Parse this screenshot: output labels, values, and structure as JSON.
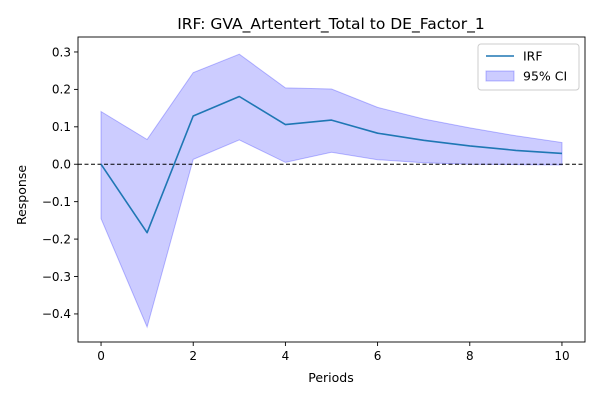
{
  "chart_data": {
    "type": "line",
    "title": "IRF: GVA_Artentert_Total to DE_Factor_1",
    "xlabel": "Periods",
    "ylabel": "Response",
    "xlim": [
      -0.5,
      10.5
    ],
    "ylim": [
      -0.475,
      0.34
    ],
    "xticks": [
      0,
      2,
      4,
      6,
      8,
      10
    ],
    "yticks": [
      -0.4,
      -0.3,
      -0.2,
      -0.1,
      0.0,
      0.1,
      0.2,
      0.3
    ],
    "xtick_labels": [
      "0",
      "2",
      "4",
      "6",
      "8",
      "10"
    ],
    "ytick_labels": [
      "−0.4",
      "−0.3",
      "−0.2",
      "−0.1",
      "0.0",
      "0.1",
      "0.2",
      "0.3"
    ],
    "x": [
      0,
      1,
      2,
      3,
      4,
      5,
      6,
      7,
      8,
      9,
      10
    ],
    "series": [
      {
        "name": "IRF",
        "values": [
          0.0,
          -0.183,
          0.129,
          0.181,
          0.106,
          0.118,
          0.083,
          0.064,
          0.049,
          0.037,
          0.029
        ],
        "color": "#1f77b4"
      }
    ],
    "ci": {
      "name": "95% CI",
      "lower": [
        -0.145,
        -0.435,
        0.013,
        0.065,
        0.005,
        0.032,
        0.012,
        0.004,
        0.0,
        -0.001,
        -0.002
      ],
      "upper": [
        0.141,
        0.066,
        0.245,
        0.294,
        0.204,
        0.201,
        0.152,
        0.121,
        0.097,
        0.076,
        0.058
      ],
      "color": "#0000ff"
    },
    "zero_line": 0,
    "grid": false,
    "legend_position": "top-right"
  }
}
